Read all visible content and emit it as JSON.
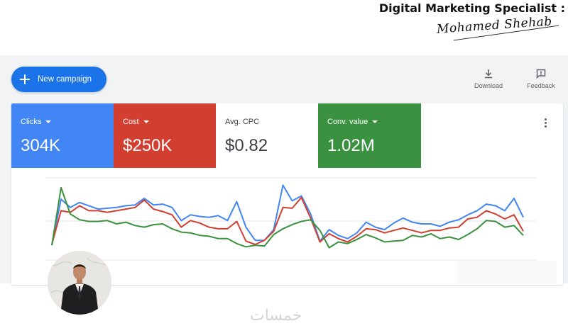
{
  "header": {
    "title": "Digital Marketing Specialist :",
    "signature": "Mohamed Shehab"
  },
  "toolbar": {
    "new_campaign_label": "New campaign",
    "download_label": "Download",
    "feedback_label": "Feedback"
  },
  "metrics": [
    {
      "label": "Clicks",
      "value": "304K",
      "color": "#4285f4"
    },
    {
      "label": "Cost",
      "value": "$250K",
      "color": "#d23f31"
    },
    {
      "label": "Avg. CPC",
      "value": "$0.82",
      "color": "#ffffff"
    },
    {
      "label": "Conv. value",
      "value": "1.02M",
      "color": "#3a913f"
    }
  ],
  "watermark": "خمسات",
  "chart_data": {
    "type": "line",
    "grid": true,
    "legend": "none",
    "ylim": [
      0,
      100
    ],
    "series": [
      {
        "color": "#4285f4",
        "values": [
          18,
          74,
          64,
          70,
          66,
          62,
          63,
          64,
          66,
          67,
          75,
          67,
          68,
          64,
          48,
          55,
          53,
          52,
          54,
          48,
          71,
          40,
          24,
          24,
          37,
          91,
          72,
          78,
          56,
          23,
          37,
          30,
          26,
          33,
          46,
          40,
          37,
          45,
          51,
          46,
          44,
          44,
          41,
          46,
          49,
          55,
          60,
          68,
          66,
          60,
          75,
          52
        ]
      },
      {
        "color": "#d23f31",
        "values": [
          19,
          60,
          58,
          66,
          60,
          60,
          58,
          60,
          62,
          64,
          73,
          62,
          59,
          55,
          40,
          48,
          45,
          40,
          38,
          38,
          47,
          23,
          19,
          24,
          35,
          64,
          63,
          76,
          51,
          22,
          32,
          26,
          22,
          29,
          38,
          37,
          33,
          36,
          39,
          36,
          33,
          36,
          36,
          39,
          40,
          50,
          52,
          60,
          56,
          50,
          55,
          35
        ]
      },
      {
        "color": "#3a913f",
        "values": [
          18,
          88,
          56,
          49,
          47,
          47,
          48,
          44,
          46,
          42,
          40,
          43,
          44,
          38,
          34,
          33,
          30,
          29,
          26,
          26,
          20,
          16,
          18,
          17,
          31,
          38,
          43,
          47,
          49,
          36,
          15,
          22,
          20,
          25,
          31,
          27,
          22,
          23,
          24,
          30,
          28,
          32,
          26,
          28,
          25,
          31,
          38,
          48,
          47,
          40,
          42,
          30
        ]
      }
    ]
  }
}
